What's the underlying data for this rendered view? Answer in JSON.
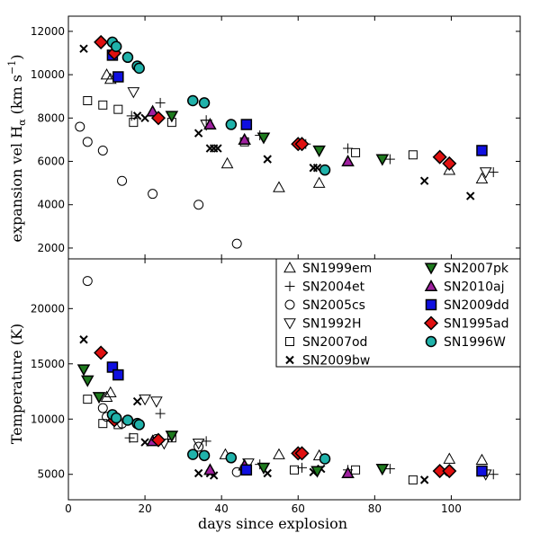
{
  "chart_data": {
    "type": "scatter",
    "xlabel": "days since explosion",
    "xlim": [
      0,
      118
    ],
    "xticks": [
      0,
      20,
      40,
      60,
      80,
      100
    ],
    "panels": [
      {
        "id": "velocity",
        "ylabel_main": "expansion vel H",
        "ylabel_sub": "α",
        "ylabel_unit": " (km s",
        "ylabel_exp": "−1",
        "ylabel_close": ")",
        "ylim": [
          1500,
          12700
        ],
        "yticks": [
          2000,
          4000,
          6000,
          8000,
          10000,
          12000
        ]
      },
      {
        "id": "temperature",
        "ylabel": "Temperature (K)",
        "ylim": [
          2700,
          24500
        ],
        "yticks": [
          5000,
          10000,
          15000,
          20000
        ]
      }
    ],
    "series": [
      {
        "name": "SN1999em",
        "marker": "triangle-up",
        "fill": "none",
        "stroke": "#000000",
        "velocity": [
          [
            10,
            10000
          ],
          [
            11,
            9800
          ],
          [
            41.5,
            5900
          ],
          [
            55,
            4800
          ],
          [
            65.5,
            5000
          ],
          [
            99.5,
            5600
          ],
          [
            108,
            5200
          ]
        ],
        "temperature": [
          [
            10,
            12000
          ],
          [
            11,
            12400
          ],
          [
            41,
            6800
          ],
          [
            55,
            6800
          ],
          [
            65.5,
            6700
          ],
          [
            99.5,
            6400
          ],
          [
            108,
            6300
          ]
        ]
      },
      {
        "name": "SN2004et",
        "marker": "plus",
        "fill": "none",
        "stroke": "#000000",
        "velocity": [
          [
            16.5,
            8100
          ],
          [
            24,
            8700
          ],
          [
            36,
            7900
          ],
          [
            50,
            7200
          ],
          [
            62,
            6800
          ],
          [
            73,
            6600
          ],
          [
            84,
            6100
          ],
          [
            111,
            5500
          ]
        ],
        "temperature": [
          [
            16,
            8300
          ],
          [
            24,
            10500
          ],
          [
            36,
            8000
          ],
          [
            50,
            5900
          ],
          [
            61,
            5600
          ],
          [
            73,
            5400
          ],
          [
            84,
            5500
          ],
          [
            111,
            5000
          ]
        ]
      },
      {
        "name": "SN2005cs",
        "marker": "circle",
        "fill": "none",
        "stroke": "#000000",
        "velocity": [
          [
            3,
            7600
          ],
          [
            5,
            6900
          ],
          [
            9,
            6500
          ],
          [
            14,
            5100
          ],
          [
            22,
            4500
          ],
          [
            34,
            4000
          ],
          [
            44,
            2200
          ]
        ],
        "temperature": [
          [
            5,
            22500
          ],
          [
            9,
            11000
          ],
          [
            10,
            10200
          ],
          [
            14,
            9600
          ],
          [
            23,
            8200
          ],
          [
            34,
            7500
          ],
          [
            44,
            5200
          ]
        ]
      },
      {
        "name": "SN1992H",
        "marker": "triangle-down",
        "fill": "none",
        "stroke": "#000000",
        "velocity": [
          [
            17,
            9200
          ],
          [
            36,
            7700
          ],
          [
            51,
            7100
          ],
          [
            109,
            5500
          ]
        ],
        "temperature": [
          [
            20,
            11800
          ],
          [
            23,
            11600
          ],
          [
            25,
            7800
          ],
          [
            34,
            7800
          ],
          [
            47,
            6000
          ],
          [
            109,
            5000
          ]
        ]
      },
      {
        "name": "SN2007od",
        "marker": "square",
        "fill": "none",
        "stroke": "#000000",
        "velocity": [
          [
            5,
            8800
          ],
          [
            9,
            8600
          ],
          [
            13,
            8400
          ],
          [
            17,
            7800
          ],
          [
            27,
            7800
          ],
          [
            46,
            6900
          ],
          [
            75,
            6400
          ],
          [
            90,
            6300
          ]
        ],
        "temperature": [
          [
            5,
            11800
          ],
          [
            9,
            9600
          ],
          [
            13,
            9500
          ],
          [
            17,
            8300
          ],
          [
            27,
            8300
          ],
          [
            46,
            5400
          ],
          [
            59,
            5400
          ],
          [
            75,
            5400
          ],
          [
            90,
            4500
          ]
        ]
      },
      {
        "name": "SN2009bw",
        "marker": "x",
        "fill": "none",
        "stroke": "#000000",
        "velocity": [
          [
            4,
            11200
          ],
          [
            18,
            8100
          ],
          [
            20,
            8000
          ],
          [
            34,
            7300
          ],
          [
            37,
            6600
          ],
          [
            38,
            6600
          ],
          [
            39,
            6600
          ],
          [
            52,
            6100
          ],
          [
            64,
            5700
          ],
          [
            65,
            5700
          ],
          [
            93,
            5100
          ],
          [
            105,
            4400
          ]
        ],
        "temperature": [
          [
            4,
            17200
          ],
          [
            18,
            11600
          ],
          [
            20,
            7900
          ],
          [
            34,
            5100
          ],
          [
            37,
            5100
          ],
          [
            38,
            4900
          ],
          [
            52,
            5100
          ],
          [
            64,
            5200
          ],
          [
            66,
            5500
          ],
          [
            93,
            4500
          ],
          [
            98,
            5200
          ]
        ]
      },
      {
        "name": "SN2007pk",
        "marker": "triangle-down",
        "fill": "#1e7a1e",
        "stroke": "#000000",
        "velocity": [
          [
            27,
            8100
          ],
          [
            51,
            7100
          ],
          [
            65.5,
            6500
          ],
          [
            82,
            6100
          ]
        ],
        "temperature": [
          [
            4,
            14500
          ],
          [
            5,
            13500
          ],
          [
            8,
            12000
          ],
          [
            27,
            8500
          ],
          [
            51,
            5600
          ],
          [
            65,
            5300
          ],
          [
            82,
            5500
          ]
        ]
      },
      {
        "name": "SN2010aj",
        "marker": "triangle-up",
        "fill": "#a020a0",
        "stroke": "#000000",
        "velocity": [
          [
            22,
            8300
          ],
          [
            37,
            7700
          ],
          [
            46,
            7000
          ],
          [
            73,
            6000
          ]
        ],
        "temperature": [
          [
            22,
            8000
          ],
          [
            37,
            5400
          ],
          [
            46,
            5800
          ],
          [
            73,
            5100
          ]
        ]
      },
      {
        "name": "SN2009dd",
        "marker": "square",
        "fill": "#1010e0",
        "stroke": "#000000",
        "velocity": [
          [
            11.5,
            10900
          ],
          [
            13,
            9900
          ],
          [
            46.5,
            7700
          ],
          [
            108,
            6500
          ]
        ],
        "temperature": [
          [
            11.5,
            14700
          ],
          [
            13,
            14000
          ],
          [
            46.5,
            5400
          ],
          [
            108,
            5300
          ]
        ]
      },
      {
        "name": "SN1995ad",
        "marker": "diamond",
        "fill": "#e01010",
        "stroke": "#000000",
        "velocity": [
          [
            8.5,
            11500
          ],
          [
            12,
            11000
          ],
          [
            23.5,
            8000
          ],
          [
            60,
            6800
          ],
          [
            61,
            6800
          ],
          [
            97,
            6200
          ],
          [
            99.5,
            5900
          ]
        ],
        "temperature": [
          [
            8.5,
            16000
          ],
          [
            12,
            9900
          ],
          [
            23.5,
            8100
          ],
          [
            60,
            6900
          ],
          [
            61,
            6900
          ],
          [
            97,
            5300
          ],
          [
            99.5,
            5300
          ]
        ]
      },
      {
        "name": "SN1996W",
        "marker": "circle",
        "fill": "#20b2aa",
        "stroke": "#000000",
        "velocity": [
          [
            11.5,
            11500
          ],
          [
            12.5,
            11300
          ],
          [
            15.5,
            10800
          ],
          [
            18,
            10400
          ],
          [
            18.5,
            10300
          ],
          [
            32.5,
            8800
          ],
          [
            35.5,
            8700
          ],
          [
            42.5,
            7700
          ],
          [
            67,
            5600
          ]
        ],
        "temperature": [
          [
            11.5,
            10400
          ],
          [
            12.5,
            10100
          ],
          [
            15.5,
            9900
          ],
          [
            18,
            9600
          ],
          [
            18.5,
            9500
          ],
          [
            32.5,
            6800
          ],
          [
            35.5,
            6700
          ],
          [
            42.5,
            6500
          ],
          [
            67,
            6400
          ]
        ]
      }
    ],
    "legend": {
      "placement": "top-right of lower panel",
      "columns": [
        [
          "SN1999em",
          "SN2004et",
          "SN2005cs",
          "SN1992H",
          "SN2007od",
          "SN2009bw"
        ],
        [
          "SN2007pk",
          "SN2010aj",
          "SN2009dd",
          "SN1995ad",
          "SN1996W"
        ]
      ]
    }
  }
}
